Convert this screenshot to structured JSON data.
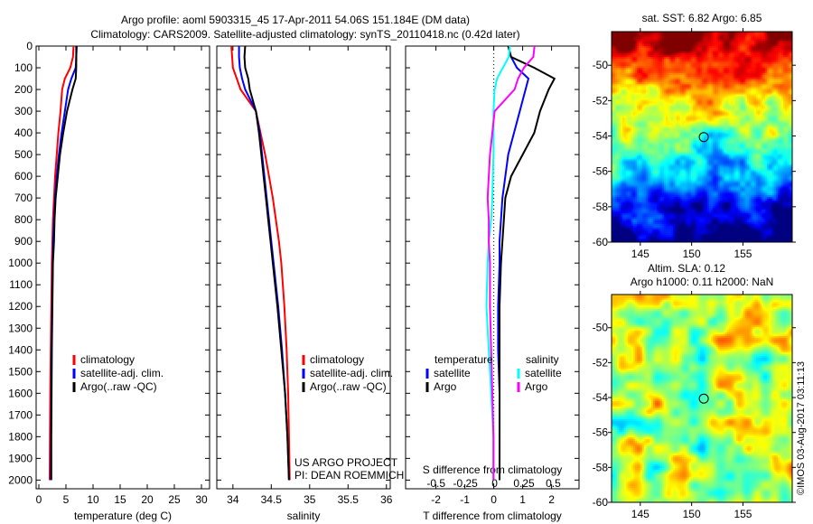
{
  "title_line1": "Argo profile: aoml 5903315_45 17-Apr-2011 54.06S 151.184E (DM data)",
  "title_line2": "Climatology: CARS2009. Satellite-adjusted climatology: synTS_20110418.nc (0.42d later)",
  "colors": {
    "climatology": "#ff0000",
    "satellite": "#0000ff",
    "argo": "#000000",
    "sal_satellite": "#00ffff",
    "sal_argo": "#ff00ff"
  },
  "credit": "©IMOS 03-Aug-2017 03:11:13",
  "project_line1": "US ARGO PROJECT",
  "project_line2": "PI: DEAN ROEMMICH",
  "chart_data": [
    {
      "type": "line",
      "name": "temperature",
      "xlabel": "temperature (deg C)",
      "ylabel": "",
      "xlim": [
        -0.5,
        31.5
      ],
      "ylim": [
        2040,
        0
      ],
      "xticks": [
        0,
        5,
        10,
        15,
        20,
        25,
        30
      ],
      "yticks": [
        0,
        100,
        200,
        300,
        400,
        500,
        600,
        700,
        800,
        900,
        1000,
        1100,
        1200,
        1300,
        1400,
        1500,
        1600,
        1700,
        1800,
        1900,
        2000
      ],
      "depth": [
        0,
        50,
        100,
        150,
        200,
        300,
        400,
        500,
        600,
        700,
        800,
        900,
        1000,
        1200,
        1400,
        1600,
        1800,
        2000
      ],
      "legend": [
        "climatology",
        "satellite-adj. clim.",
        "Argo(..raw -QC)"
      ],
      "series": [
        {
          "name": "climatology",
          "color_key": "climatology",
          "values": [
            6.4,
            6.3,
            5.8,
            4.8,
            4.3,
            4.0,
            3.6,
            3.3,
            3.0,
            2.8,
            2.6,
            2.5,
            2.4,
            2.3,
            2.2,
            2.1,
            2.05,
            2.0
          ]
        },
        {
          "name": "satellite-adj. clim.",
          "color_key": "satellite",
          "values": [
            7.0,
            6.9,
            6.8,
            6.0,
            5.4,
            4.8,
            4.2,
            3.7,
            3.3,
            3.0,
            2.8,
            2.65,
            2.55,
            2.45,
            2.35,
            2.3,
            2.25,
            2.2
          ]
        },
        {
          "name": "Argo(..raw -QC)",
          "color_key": "argo",
          "values": [
            6.9,
            6.9,
            6.9,
            6.8,
            6.2,
            5.2,
            4.5,
            3.9,
            3.5,
            3.1,
            2.9,
            2.8,
            2.6,
            2.5,
            2.4,
            2.35,
            2.3,
            2.3
          ]
        }
      ]
    },
    {
      "type": "line",
      "name": "salinity",
      "xlabel": "salinity",
      "xlim": [
        33.79,
        36.05
      ],
      "ylim": [
        2040,
        0
      ],
      "xticks": [
        34,
        34.5,
        35,
        35.5,
        36
      ],
      "depth": [
        0,
        50,
        100,
        150,
        200,
        300,
        400,
        500,
        600,
        700,
        800,
        900,
        1000,
        1200,
        1400,
        1600,
        1800,
        2000
      ],
      "legend": [
        "climatology",
        "satellite-adj. clim.",
        "Argo(..raw -QC)"
      ],
      "series": [
        {
          "name": "climatology",
          "color_key": "climatology",
          "values": [
            33.98,
            33.99,
            34.0,
            34.05,
            34.1,
            34.3,
            34.36,
            34.42,
            34.47,
            34.52,
            34.56,
            34.6,
            34.63,
            34.67,
            34.7,
            34.72,
            34.73,
            34.74
          ]
        },
        {
          "name": "satellite-adj. clim.",
          "color_key": "satellite",
          "values": [
            34.08,
            34.08,
            34.09,
            34.12,
            34.16,
            34.3,
            34.35,
            34.38,
            34.41,
            34.44,
            34.47,
            34.5,
            34.53,
            34.59,
            34.64,
            34.68,
            34.71,
            34.73
          ]
        },
        {
          "name": "Argo(..raw -QC)",
          "color_key": "argo",
          "values": [
            34.16,
            34.15,
            34.16,
            34.2,
            34.22,
            34.3,
            34.34,
            34.37,
            34.4,
            34.43,
            34.46,
            34.49,
            34.52,
            34.58,
            34.63,
            34.68,
            34.71,
            34.73
          ]
        }
      ]
    },
    {
      "type": "line",
      "name": "differences",
      "xlabel": "T difference from climatology",
      "x2label": "S difference from climatology",
      "xlim": [
        -3.05,
        2.95
      ],
      "x2lim": [
        -0.76,
        0.72
      ],
      "ylim": [
        2040,
        0
      ],
      "xticks": [
        -2,
        -1,
        0,
        1,
        2
      ],
      "x2ticks": [
        -0.5,
        -0.25,
        0,
        0.25,
        0.5
      ],
      "depth": [
        0,
        50,
        100,
        150,
        200,
        300,
        400,
        500,
        600,
        700,
        800,
        900,
        1000,
        1200,
        1400,
        1600,
        1800,
        2000
      ],
      "legend_titles": [
        "temperature",
        "salinity"
      ],
      "legend": [
        "satellite",
        "Argo",
        "satellite",
        "Argo"
      ],
      "series": [
        {
          "name": "T satellite",
          "axis": "T",
          "color_key": "satellite",
          "values": [
            0.5,
            0.6,
            0.8,
            1.2,
            1.1,
            0.9,
            0.7,
            0.5,
            0.4,
            0.3,
            0.25,
            0.2,
            0.2,
            0.15,
            0.15,
            0.2,
            0.2,
            0.2
          ]
        },
        {
          "name": "T Argo",
          "axis": "T",
          "color_key": "argo",
          "values": [
            0.5,
            0.6,
            1.4,
            2.1,
            1.9,
            1.6,
            1.4,
            1.0,
            0.6,
            0.4,
            0.35,
            0.3,
            0.25,
            0.2,
            0.2,
            0.2,
            0.2,
            0.2
          ]
        },
        {
          "name": "S satellite",
          "axis": "S",
          "color_key": "sal_satellite",
          "values": [
            0.13,
            0.12,
            0.07,
            0.02,
            0.0,
            -0.01,
            -0.01,
            -0.01,
            -0.015,
            -0.02,
            -0.03,
            -0.05,
            -0.06,
            -0.07,
            -0.05,
            -0.03,
            -0.01,
            -0.01
          ]
        },
        {
          "name": "S Argo",
          "axis": "S",
          "color_key": "sal_argo",
          "values": [
            0.34,
            0.33,
            0.25,
            0.2,
            0.17,
            0.0,
            -0.02,
            -0.04,
            -0.05,
            -0.06,
            -0.05,
            -0.05,
            -0.04,
            -0.04,
            -0.03,
            -0.02,
            -0.01,
            -0.01
          ]
        }
      ]
    },
    {
      "type": "heatmap",
      "name": "sst-map",
      "title": "sat. SST: 6.82 Argo: 6.85",
      "xlim": [
        142.2,
        159.8
      ],
      "ylim": [
        -60,
        -48.1
      ],
      "xticks": [
        145,
        150,
        155
      ],
      "yticks": [
        -50,
        -52,
        -54,
        -56,
        -58,
        -60
      ],
      "marker": {
        "lon": 151.184,
        "lat": -54.06
      }
    },
    {
      "type": "heatmap",
      "name": "sla-map",
      "title_line1": "Altim. SLA: 0.12",
      "title_line2": "Argo h1000: 0.11 h2000: NaN",
      "xlim": [
        142.2,
        159.8
      ],
      "ylim": [
        -60,
        -48.1
      ],
      "xticks": [
        145,
        150,
        155
      ],
      "yticks": [
        -50,
        -52,
        -54,
        -56,
        -58,
        -60
      ],
      "marker": {
        "lon": 151.184,
        "lat": -54.06
      }
    }
  ]
}
